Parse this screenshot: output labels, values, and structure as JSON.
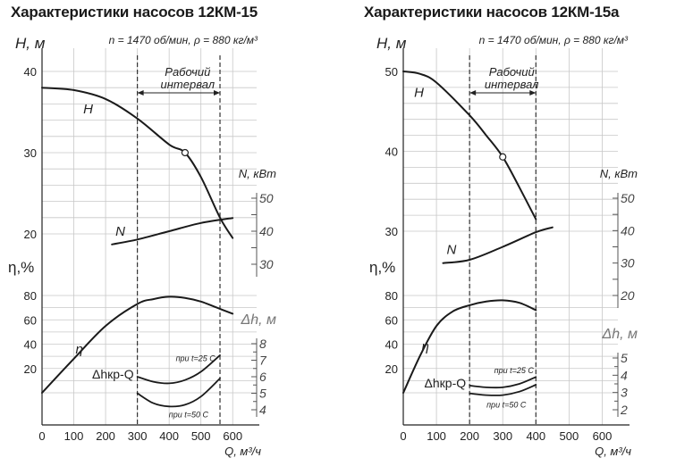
{
  "chart_data": [
    {
      "type": "line",
      "title": "Характеристики насосов 12КМ-15",
      "subtitle": "n = 1470 об/мин, ρ = 880 кг/м³",
      "xlabel": "Q, м³/ч",
      "x_ticks": [
        "0",
        "100",
        "200",
        "300",
        "400",
        "500",
        "600"
      ],
      "xlim": [
        0,
        650
      ],
      "head_axis": {
        "label": "H, м",
        "ticks": [
          "20",
          "30",
          "40"
        ],
        "range": [
          20,
          40
        ]
      },
      "power_axis": {
        "label": "N, кВт",
        "ticks": [
          "30",
          "40",
          "50"
        ],
        "range": [
          30,
          50
        ]
      },
      "eff_axis": {
        "label": "η,%",
        "ticks": [
          "20",
          "40",
          "60",
          "80"
        ],
        "range": [
          0,
          80
        ]
      },
      "npsh_axis": {
        "label": "Δh, м",
        "ticks": [
          "4",
          "5",
          "6",
          "7",
          "8"
        ],
        "range": [
          4,
          8
        ]
      },
      "operating_range": {
        "label_line1": "Рабочий",
        "label_line2": "интервал",
        "x": [
          300,
          560
        ]
      },
      "series": [
        {
          "name": "H",
          "axis": "head",
          "x": [
            0,
            100,
            200,
            300,
            400,
            450,
            500,
            560,
            600
          ],
          "y": [
            38,
            37.7,
            36.6,
            34.2,
            31,
            30,
            27,
            22,
            19.5
          ]
        },
        {
          "name": "N",
          "axis": "power",
          "x": [
            220,
            300,
            400,
            500,
            600
          ],
          "y": [
            36,
            37.5,
            40,
            42.5,
            44
          ]
        },
        {
          "name": "η",
          "axis": "eff",
          "x": [
            0,
            100,
            200,
            300,
            350,
            400,
            450,
            500,
            550,
            600
          ],
          "y": [
            0,
            28,
            55,
            73,
            77,
            79,
            78,
            75,
            70,
            65
          ]
        },
        {
          "name": "при t=25 С",
          "axis": "npsh",
          "x": [
            300,
            350,
            400,
            450,
            500,
            560
          ],
          "y": [
            6,
            5.7,
            5.6,
            5.8,
            6.3,
            7.3
          ]
        },
        {
          "name": "при t=50 С",
          "axis": "npsh",
          "x": [
            300,
            350,
            400,
            450,
            500,
            560
          ],
          "y": [
            5,
            4.4,
            4.2,
            4.3,
            4.8,
            5.9
          ]
        }
      ],
      "markers": [
        {
          "series": "H",
          "x": 450,
          "y": 30
        }
      ],
      "curve_labels": {
        "npsh": "Δhкр-Q"
      }
    },
    {
      "type": "line",
      "title": "Характеристики насосов 12КМ-15а",
      "subtitle": "n = 1470 об/мин, ρ = 880 кг/м³",
      "xlabel": "Q, м³/ч",
      "x_ticks": [
        "0",
        "100",
        "200",
        "300",
        "400",
        "500",
        "600"
      ],
      "xlim": [
        0,
        650
      ],
      "head_axis": {
        "label": "H, м",
        "ticks": [
          "30",
          "40",
          "50"
        ],
        "range": [
          30,
          50
        ]
      },
      "power_axis": {
        "label": "N, кВт",
        "ticks": [
          "20",
          "30",
          "40",
          "50"
        ],
        "range": [
          20,
          50
        ]
      },
      "eff_axis": {
        "label": "η,%",
        "ticks": [
          "20",
          "40",
          "60",
          "80"
        ],
        "range": [
          0,
          80
        ]
      },
      "npsh_axis": {
        "label": "Δh, м",
        "ticks": [
          "2",
          "3",
          "4",
          "5"
        ],
        "range": [
          2,
          5
        ]
      },
      "operating_range": {
        "label_line1": "Рабочий",
        "label_line2": "интервал",
        "x": [
          200,
          400
        ]
      },
      "series": [
        {
          "name": "H",
          "axis": "head",
          "x": [
            0,
            50,
            100,
            200,
            250,
            300,
            350,
            400
          ],
          "y": [
            50,
            49.7,
            48.6,
            44.5,
            42,
            39.3,
            35.5,
            31.5
          ]
        },
        {
          "name": "N",
          "axis": "power",
          "x": [
            120,
            200,
            300,
            400,
            450
          ],
          "y": [
            30,
            31,
            35,
            39.5,
            41
          ]
        },
        {
          "name": "η",
          "axis": "eff",
          "x": [
            0,
            50,
            100,
            150,
            200,
            250,
            300,
            350,
            400
          ],
          "y": [
            0,
            30,
            55,
            67,
            72,
            75,
            76,
            74,
            68
          ]
        },
        {
          "name": "при t=25 С",
          "axis": "npsh",
          "x": [
            200,
            250,
            300,
            350,
            400
          ],
          "y": [
            3.4,
            3.3,
            3.3,
            3.5,
            3.9
          ]
        },
        {
          "name": "при t=50 С",
          "axis": "npsh",
          "x": [
            200,
            250,
            300,
            350,
            400
          ],
          "y": [
            2.95,
            2.85,
            2.85,
            3.05,
            3.45
          ]
        }
      ],
      "markers": [
        {
          "series": "H",
          "x": 300,
          "y": 39.3
        }
      ],
      "curve_labels": {
        "npsh": "Δhкр-Q"
      }
    }
  ]
}
